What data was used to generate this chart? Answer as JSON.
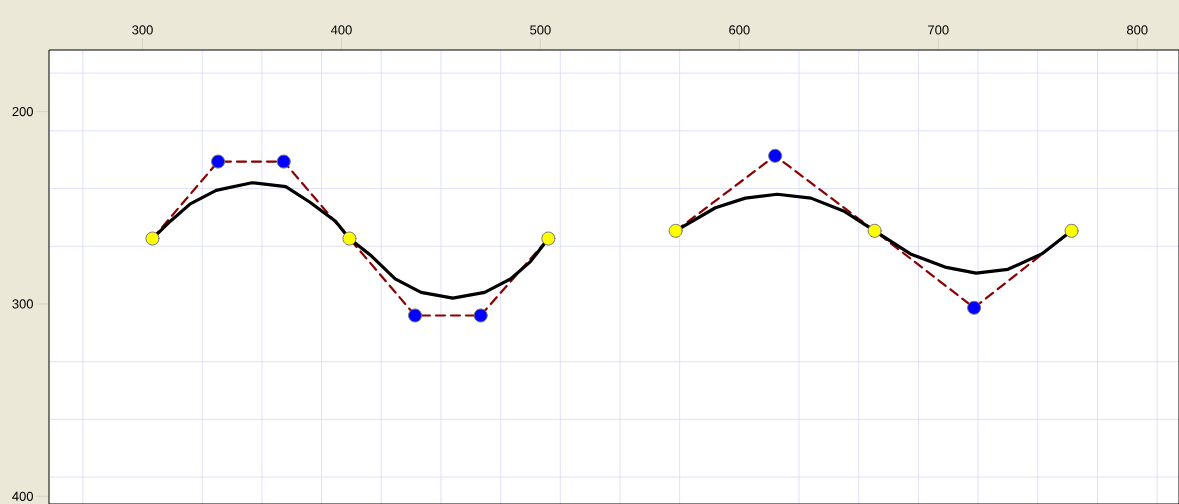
{
  "chart_data": {
    "type": "line",
    "xlim": [
      253,
      821
    ],
    "ylim": [
      404,
      168
    ],
    "xticks": [
      {
        "value": 270,
        "label": null
      },
      300,
      {
        "value": 330,
        "label": null
      },
      {
        "value": 360,
        "label": null
      },
      {
        "value": 390,
        "label": null
      },
      400,
      {
        "value": 420,
        "label": null
      },
      {
        "value": 450,
        "label": null
      },
      {
        "value": 480,
        "label": null
      },
      500,
      {
        "value": 510,
        "label": null
      },
      {
        "value": 540,
        "label": null
      },
      {
        "value": 570,
        "label": null
      },
      600,
      {
        "value": 630,
        "label": null
      },
      {
        "value": 660,
        "label": null
      },
      {
        "value": 690,
        "label": null
      },
      700,
      {
        "value": 720,
        "label": null
      },
      {
        "value": 750,
        "label": null
      },
      {
        "value": 780,
        "label": null
      },
      800,
      {
        "value": 810,
        "label": null
      }
    ],
    "yticks": [
      {
        "value": 180,
        "label": null
      },
      200,
      {
        "value": 210,
        "label": null
      },
      {
        "value": 240,
        "label": null
      },
      {
        "value": 270,
        "label": null
      },
      300,
      {
        "value": 330,
        "label": null
      },
      {
        "value": 360,
        "label": null
      },
      {
        "value": 390,
        "label": null
      },
      400
    ],
    "grid": true,
    "series": [
      {
        "color": "#8b0000",
        "line_style": "dashed",
        "marker": "none",
        "x": [
          305,
          338,
          371,
          404,
          437,
          470,
          504
        ],
        "values": [
          266,
          226,
          226,
          266,
          306,
          306,
          266
        ]
      },
      {
        "color": "#8b0000",
        "line_style": "dashed",
        "marker": "none",
        "x": [
          568,
          618,
          668,
          718,
          767
        ],
        "values": [
          262,
          223,
          262,
          302,
          262
        ]
      },
      {
        "color": "#000000",
        "line_style": "solid",
        "marker": "none",
        "x": [
          305,
          314,
          324,
          337,
          355,
          372,
          384,
          397,
          404,
          415,
          427,
          440,
          456,
          472,
          485,
          495,
          504
        ],
        "values": [
          266,
          257,
          248,
          241,
          237,
          239,
          247,
          257,
          266,
          275,
          287,
          294,
          297,
          294,
          287,
          278,
          266
        ]
      },
      {
        "color": "#000000",
        "line_style": "solid",
        "marker": "none",
        "x": [
          568,
          588,
          603,
          619,
          636,
          653,
          668,
          686,
          704,
          719,
          735,
          752,
          767
        ],
        "values": [
          262,
          250,
          245,
          243,
          245,
          252,
          262,
          274,
          281,
          284,
          282,
          274,
          262
        ]
      },
      {
        "type": "scatter",
        "color": "#ffff00",
        "marker": "circle",
        "x": [
          305,
          404,
          504,
          568,
          668,
          767
        ],
        "values": [
          266,
          266,
          266,
          262,
          262,
          262
        ]
      },
      {
        "type": "scatter",
        "color": "#0000ff",
        "marker": "circle",
        "x": [
          338,
          371,
          437,
          470,
          618,
          718
        ],
        "values": [
          226,
          226,
          306,
          306,
          223,
          302
        ]
      }
    ]
  }
}
